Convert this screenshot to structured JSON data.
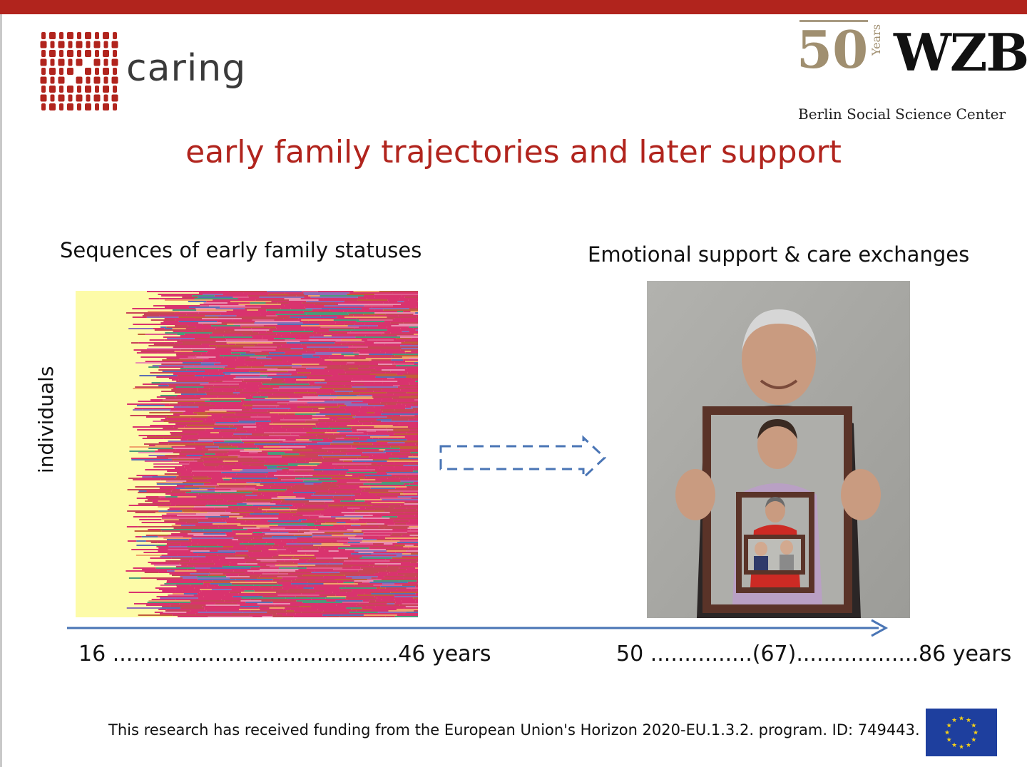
{
  "brand": {
    "caring_text": "caring",
    "caring_color": "#b1241d",
    "wzb_years_number": "50",
    "wzb_years_word": "Years",
    "wzb_name": "WZB",
    "wzb_subtitle": "Berlin Social Science Center"
  },
  "slide": {
    "title": "early family trajectories and later support",
    "left_label": "Sequences of early family statuses",
    "right_label": "Emotional support & care exchanges",
    "y_axis_label": "individuals",
    "left_timeline": "16 ..........................................46 years",
    "right_timeline": "50 ...............(67)..................86 years",
    "funding_note": "This research has received funding from the European Union's Horizon 2020-EU.1.3.2. program. ID: 749443."
  },
  "colors": {
    "accent_red": "#b1241d",
    "timeline_blue": "#4a75b5",
    "eu_blue": "#1e3f9e",
    "eu_star": "#f7d117"
  },
  "sequence_palette": [
    "#fdfba8",
    "#d9336e",
    "#c84557",
    "#5b6fb5",
    "#e05c8c",
    "#c25e3a",
    "#8e6db8",
    "#e98fb0",
    "#4c9a7a",
    "#f0a36b"
  ]
}
